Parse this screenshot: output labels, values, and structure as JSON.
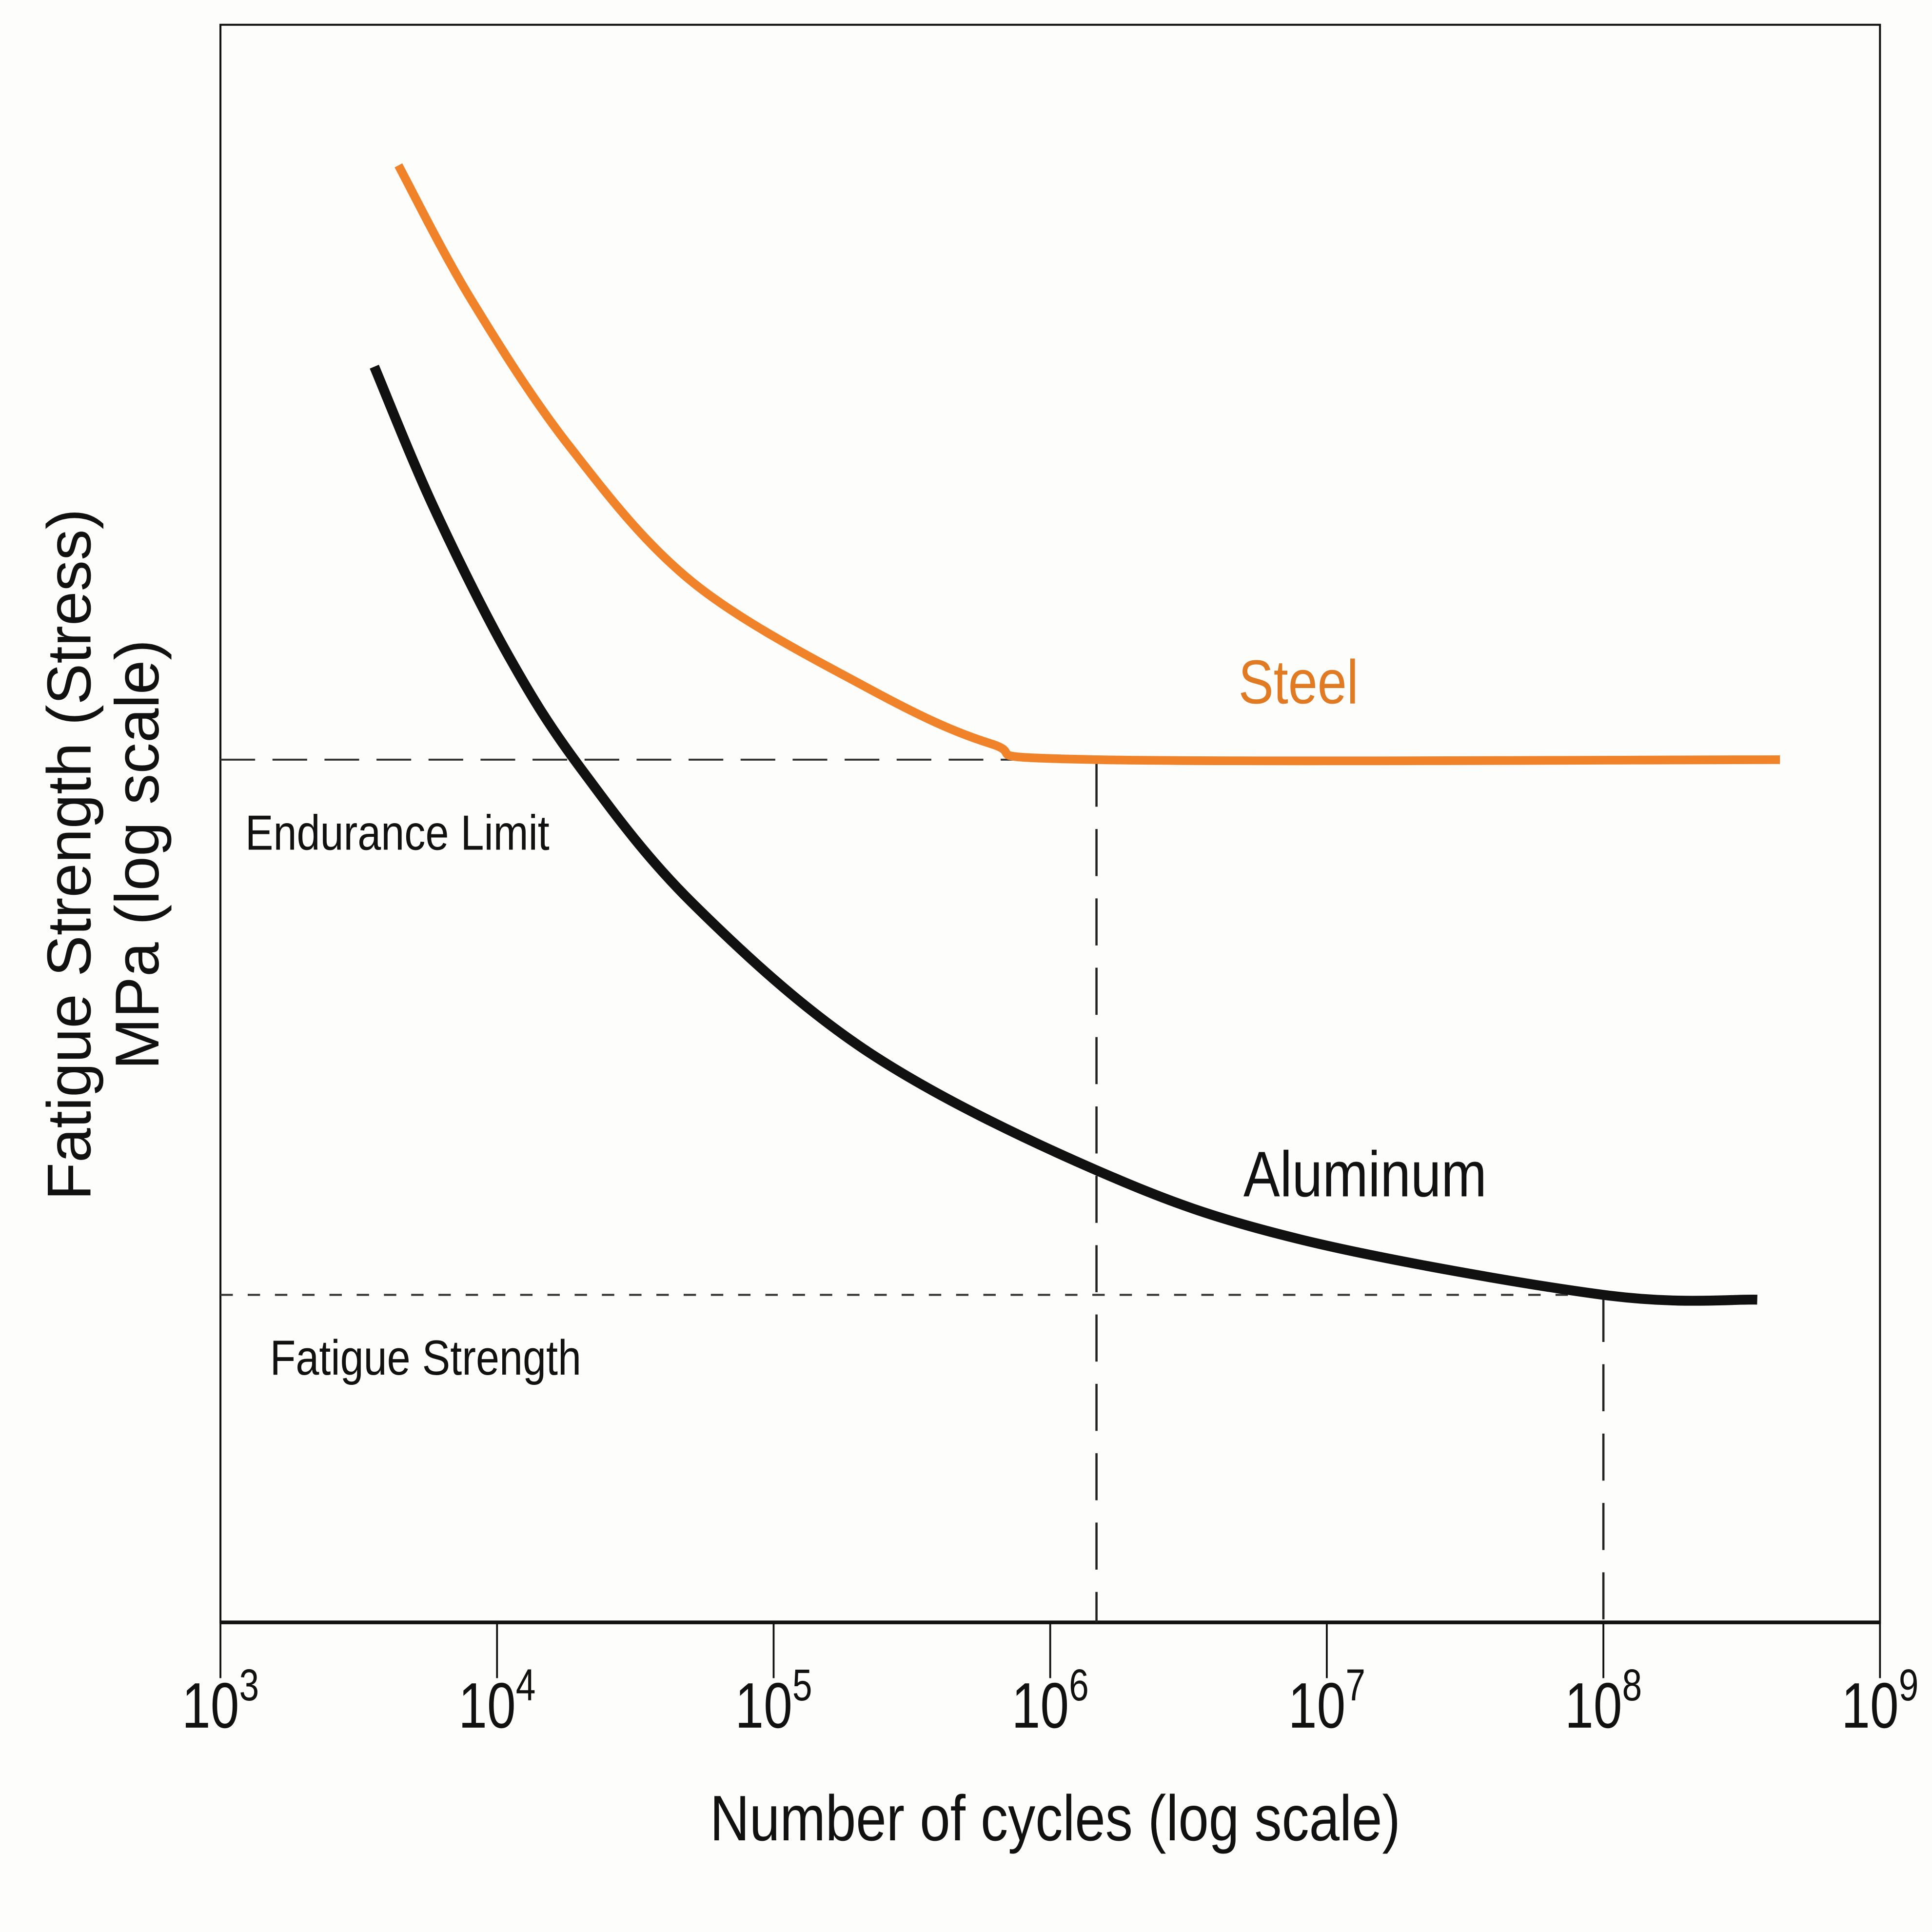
{
  "chart_data": {
    "type": "line",
    "title": "",
    "xlabel": "Number of cycles (log scale)",
    "ylabel_lines": [
      "Fatigue Strength (Stress)",
      "MPa (log scale)"
    ],
    "x_scale": "log",
    "y_scale": "log",
    "xlim": [
      1000,
      1000000000
    ],
    "ylim": [
      0,
      100
    ],
    "y_units_note": "relative",
    "x_ticks": [
      {
        "base": "10",
        "exp": "3",
        "value": 1000
      },
      {
        "base": "10",
        "exp": "4",
        "value": 10000
      },
      {
        "base": "10",
        "exp": "5",
        "value": 100000
      },
      {
        "base": "10",
        "exp": "6",
        "value": 1000000
      },
      {
        "base": "10",
        "exp": "7",
        "value": 10000000
      },
      {
        "base": "10",
        "exp": "8",
        "value": 100000000
      },
      {
        "base": "10",
        "exp": "9",
        "value": 1000000000
      }
    ],
    "grid": false,
    "series": [
      {
        "name": "Steel",
        "color": "#f0832a",
        "x": [
          4400,
          8000,
          18300,
          51000,
          218000,
          610000,
          1470000,
          435000000
        ],
        "y": [
          91.2,
          82.9,
          73.6,
          65.1,
          58.5,
          55.0,
          54.0,
          54.0
        ]
      },
      {
        "name": "Aluminum",
        "color": "#111111",
        "x": [
          3600,
          5900,
          11000,
          20000,
          51000,
          220000,
          1470000,
          7900000,
          100000000,
          360000000
        ],
        "y": [
          78.6,
          69.8,
          60.5,
          53.5,
          45.0,
          35.7,
          28.3,
          24.0,
          20.5,
          20.2
        ]
      }
    ],
    "annotations": [
      {
        "text": "Endurance Limit",
        "y": 54.0,
        "x_drop": 1470000,
        "style": "dashed"
      },
      {
        "text": "Fatigue Strength",
        "y": 20.5,
        "x_drop": 100000000,
        "style": "dotted"
      }
    ]
  }
}
